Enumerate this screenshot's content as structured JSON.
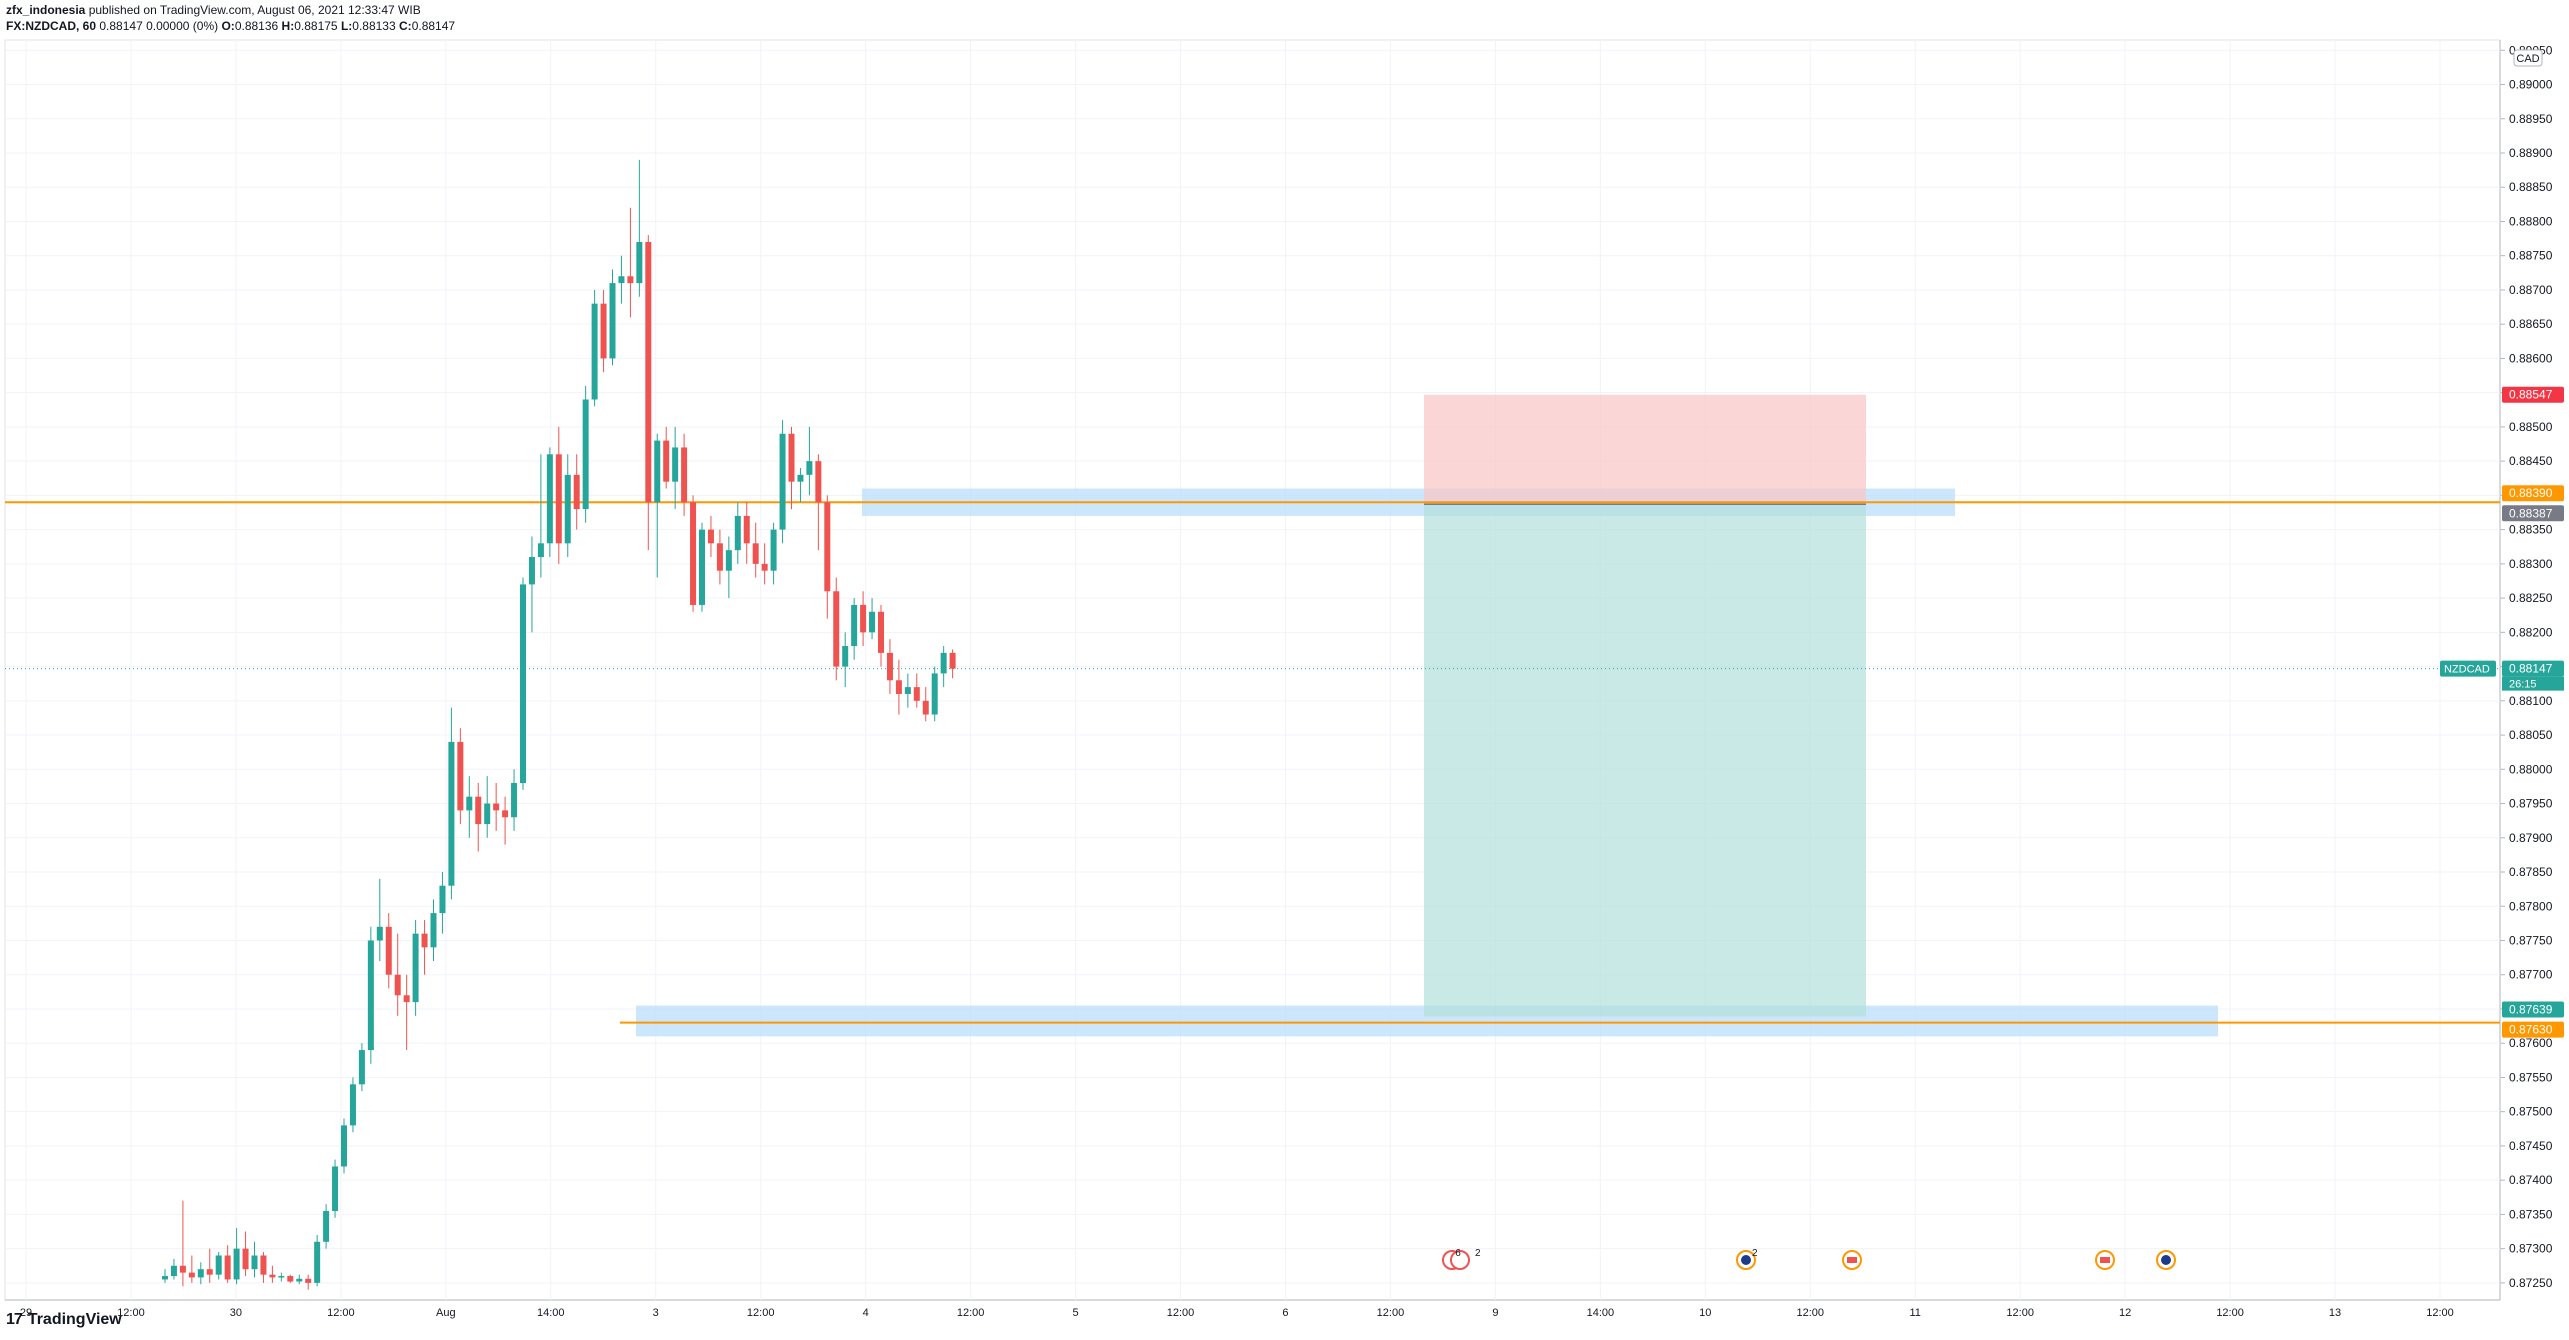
{
  "header": {
    "publisher": "zfx_indonesia",
    "published_text": "published on TradingView.com, August 06, 2021 12:33:47 WIB",
    "symbol": "FX:NZDCAD, 60",
    "change": "0.88147 0.00000 (0%)",
    "o_label": "O:",
    "o_value": "0.88136",
    "h_label": "H:",
    "h_value": "0.88175",
    "l_label": "L:",
    "l_value": "0.88133",
    "c_label": "C:",
    "c_value": "0.88147"
  },
  "footer": {
    "logo_glyph": "17",
    "brand": "TradingView"
  },
  "chart_data": {
    "type": "candlestick",
    "symbol": "NZDCAD",
    "currency": "CAD",
    "y_ticks": [
      "0.89050",
      "0.89000",
      "0.88950",
      "0.88900",
      "0.88850",
      "0.88800",
      "0.88750",
      "0.88700",
      "0.88650",
      "0.88600",
      "0.88550",
      "0.88500",
      "0.88450",
      "0.88400",
      "0.88350",
      "0.88300",
      "0.88250",
      "0.88200",
      "0.88150",
      "0.88100",
      "0.88050",
      "0.88000",
      "0.87950",
      "0.87900",
      "0.87850",
      "0.87800",
      "0.87750",
      "0.87700",
      "0.87650",
      "0.87600",
      "0.87550",
      "0.87500",
      "0.87450",
      "0.87400",
      "0.87350",
      "0.87300",
      "0.87250"
    ],
    "ylim": [
      0.87225,
      0.89065
    ],
    "x_labels": [
      "29",
      "12:00",
      "30",
      "12:00",
      "Aug",
      "14:00",
      "3",
      "12:00",
      "4",
      "12:00",
      "5",
      "12:00",
      "6",
      "12:00",
      "9",
      "14:00",
      "10",
      "12:00",
      "11",
      "12:00",
      "12",
      "12:00",
      "13",
      "12:00"
    ],
    "price_tags": [
      {
        "text": "0.88547",
        "color": "#f23645"
      },
      {
        "text": "0.88390",
        "color": "#ff9800"
      },
      {
        "text": "0.88387",
        "color": "#787b86"
      },
      {
        "text": "0.88147",
        "color": "#26a69a"
      },
      {
        "text": "0.87639",
        "color": "#26a69a"
      },
      {
        "text": "0.87630",
        "color": "#ff9800"
      }
    ],
    "last_price_label": "NZDCAD",
    "countdown": "26:15",
    "horizontal_lines": [
      0.8839,
      0.8763
    ],
    "zones": [
      [
        0.8837,
        0.8841
      ],
      [
        0.8761,
        0.87655
      ]
    ],
    "position": {
      "type": "short",
      "entry": 0.88387,
      "stop": 0.88547,
      "target": 0.87639
    },
    "event_markers": [
      "6",
      "2",
      "2"
    ],
    "colors": {
      "up": "#26a69a",
      "down": "#ef5350",
      "level": "#ff9800",
      "zone": "#bbdefb",
      "stop_fill": "#f8c8c8",
      "target_fill": "#b2dfdb"
    },
    "candles": [
      [
        0.87255,
        0.8727,
        0.8725,
        0.8726
      ],
      [
        0.8726,
        0.87285,
        0.87255,
        0.87275
      ],
      [
        0.87275,
        0.8737,
        0.87245,
        0.87265
      ],
      [
        0.87265,
        0.8729,
        0.8725,
        0.87258
      ],
      [
        0.87258,
        0.8728,
        0.87248,
        0.8727
      ],
      [
        0.8727,
        0.873,
        0.8725,
        0.87262
      ],
      [
        0.87262,
        0.87295,
        0.87255,
        0.8729
      ],
      [
        0.8729,
        0.87305,
        0.8725,
        0.87255
      ],
      [
        0.87255,
        0.8733,
        0.87248,
        0.873
      ],
      [
        0.873,
        0.87325,
        0.8726,
        0.8727
      ],
      [
        0.8727,
        0.8731,
        0.87258,
        0.8729
      ],
      [
        0.8729,
        0.87295,
        0.8725,
        0.87262
      ],
      [
        0.87262,
        0.87275,
        0.8725,
        0.87258
      ],
      [
        0.87258,
        0.87265,
        0.87252,
        0.8726
      ],
      [
        0.8726,
        0.87262,
        0.8725,
        0.87252
      ],
      [
        0.87252,
        0.87262,
        0.87248,
        0.87256
      ],
      [
        0.87256,
        0.87262,
        0.8724,
        0.8725
      ],
      [
        0.8725,
        0.8732,
        0.87245,
        0.8731
      ],
      [
        0.8731,
        0.87365,
        0.873,
        0.87355
      ],
      [
        0.87355,
        0.8743,
        0.87345,
        0.8742
      ],
      [
        0.8742,
        0.8749,
        0.8741,
        0.8748
      ],
      [
        0.8748,
        0.8755,
        0.8747,
        0.8754
      ],
      [
        0.8754,
        0.876,
        0.8753,
        0.8759
      ],
      [
        0.8759,
        0.8777,
        0.8757,
        0.8775
      ],
      [
        0.8775,
        0.8784,
        0.8772,
        0.8777
      ],
      [
        0.8777,
        0.8779,
        0.8768,
        0.877
      ],
      [
        0.877,
        0.8776,
        0.8764,
        0.8767
      ],
      [
        0.8767,
        0.877,
        0.8759,
        0.8766
      ],
      [
        0.8766,
        0.8778,
        0.8764,
        0.8776
      ],
      [
        0.8776,
        0.8778,
        0.877,
        0.8774
      ],
      [
        0.8774,
        0.8781,
        0.8772,
        0.8779
      ],
      [
        0.8779,
        0.8785,
        0.8776,
        0.8783
      ],
      [
        0.8783,
        0.8809,
        0.8781,
        0.8804
      ],
      [
        0.8804,
        0.8806,
        0.8792,
        0.8794
      ],
      [
        0.8794,
        0.8799,
        0.879,
        0.8796
      ],
      [
        0.8796,
        0.8798,
        0.8788,
        0.8792
      ],
      [
        0.8792,
        0.8799,
        0.879,
        0.8795
      ],
      [
        0.8795,
        0.8798,
        0.8791,
        0.8794
      ],
      [
        0.8794,
        0.8796,
        0.8789,
        0.8793
      ],
      [
        0.8793,
        0.88,
        0.8791,
        0.8798
      ],
      [
        0.8798,
        0.8828,
        0.8797,
        0.8827
      ],
      [
        0.8827,
        0.8834,
        0.882,
        0.8831
      ],
      [
        0.8831,
        0.8846,
        0.8828,
        0.8833
      ],
      [
        0.8833,
        0.8847,
        0.8831,
        0.8846
      ],
      [
        0.8846,
        0.885,
        0.883,
        0.8833
      ],
      [
        0.8833,
        0.8846,
        0.8831,
        0.8843
      ],
      [
        0.8843,
        0.8846,
        0.8835,
        0.8838
      ],
      [
        0.8838,
        0.8856,
        0.8836,
        0.8854
      ],
      [
        0.8854,
        0.887,
        0.8853,
        0.8868
      ],
      [
        0.8868,
        0.887,
        0.8858,
        0.886
      ],
      [
        0.886,
        0.8873,
        0.8859,
        0.8871
      ],
      [
        0.8871,
        0.8875,
        0.8868,
        0.8872
      ],
      [
        0.8872,
        0.8882,
        0.8866,
        0.8871
      ],
      [
        0.8871,
        0.8889,
        0.8869,
        0.8877
      ],
      [
        0.8877,
        0.8878,
        0.8832,
        0.8839
      ],
      [
        0.8839,
        0.8849,
        0.8828,
        0.8848
      ],
      [
        0.8848,
        0.885,
        0.8841,
        0.8842
      ],
      [
        0.8842,
        0.885,
        0.8838,
        0.8847
      ],
      [
        0.8847,
        0.8849,
        0.8837,
        0.8839
      ],
      [
        0.8839,
        0.884,
        0.8823,
        0.8824
      ],
      [
        0.8824,
        0.8836,
        0.8823,
        0.8835
      ],
      [
        0.8835,
        0.8837,
        0.8831,
        0.8833
      ],
      [
        0.8833,
        0.8835,
        0.8827,
        0.8829
      ],
      [
        0.8829,
        0.8834,
        0.8825,
        0.8832
      ],
      [
        0.8832,
        0.8839,
        0.883,
        0.8837
      ],
      [
        0.8837,
        0.8839,
        0.883,
        0.8833
      ],
      [
        0.8833,
        0.8836,
        0.8828,
        0.883
      ],
      [
        0.883,
        0.8833,
        0.8827,
        0.8829
      ],
      [
        0.8829,
        0.8836,
        0.8827,
        0.8835
      ],
      [
        0.8835,
        0.8851,
        0.8833,
        0.8849
      ],
      [
        0.8849,
        0.885,
        0.8838,
        0.8842
      ],
      [
        0.8842,
        0.8844,
        0.8839,
        0.8843
      ],
      [
        0.8843,
        0.885,
        0.884,
        0.8845
      ],
      [
        0.8845,
        0.8846,
        0.8832,
        0.8839
      ],
      [
        0.8839,
        0.884,
        0.8822,
        0.8826
      ],
      [
        0.8826,
        0.8828,
        0.8813,
        0.8815
      ],
      [
        0.8815,
        0.882,
        0.8812,
        0.8818
      ],
      [
        0.8818,
        0.8825,
        0.8816,
        0.8824
      ],
      [
        0.8824,
        0.8826,
        0.8818,
        0.882
      ],
      [
        0.882,
        0.8825,
        0.8819,
        0.8823
      ],
      [
        0.8823,
        0.8824,
        0.8815,
        0.8817
      ],
      [
        0.8817,
        0.8819,
        0.8811,
        0.8813
      ],
      [
        0.8813,
        0.8816,
        0.8808,
        0.8811
      ],
      [
        0.8811,
        0.8814,
        0.8809,
        0.8812
      ],
      [
        0.8812,
        0.8814,
        0.8809,
        0.881
      ],
      [
        0.881,
        0.8812,
        0.8807,
        0.8808
      ],
      [
        0.8808,
        0.8815,
        0.8807,
        0.8814
      ],
      [
        0.8814,
        0.8818,
        0.8812,
        0.8817
      ],
      [
        0.8817,
        0.88175,
        0.88133,
        0.88147
      ]
    ]
  }
}
